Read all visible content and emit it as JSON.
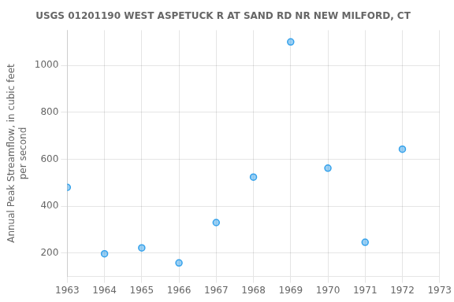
{
  "chart_data": {
    "type": "scatter",
    "title": "USGS 01201190 WEST ASPETUCK R AT SAND RD NR NEW MILFORD, CT",
    "ylabel": "Annual Peak Streamflow, in cubic feet\nper second",
    "x": [
      1963,
      1964,
      1965,
      1966,
      1967,
      1968,
      1969,
      1970,
      1971,
      1972
    ],
    "values": [
      480,
      197,
      222,
      158,
      330,
      524,
      1100,
      562,
      246,
      643
    ],
    "marker": "circle",
    "xlim": [
      1963,
      1973
    ],
    "xticks": [
      1963,
      1964,
      1965,
      1966,
      1967,
      1968,
      1969,
      1970,
      1971,
      1972,
      1973
    ],
    "ylim": [
      100,
      1150
    ],
    "yticks": [
      200,
      400,
      600,
      800,
      1000
    ],
    "grid": true
  }
}
